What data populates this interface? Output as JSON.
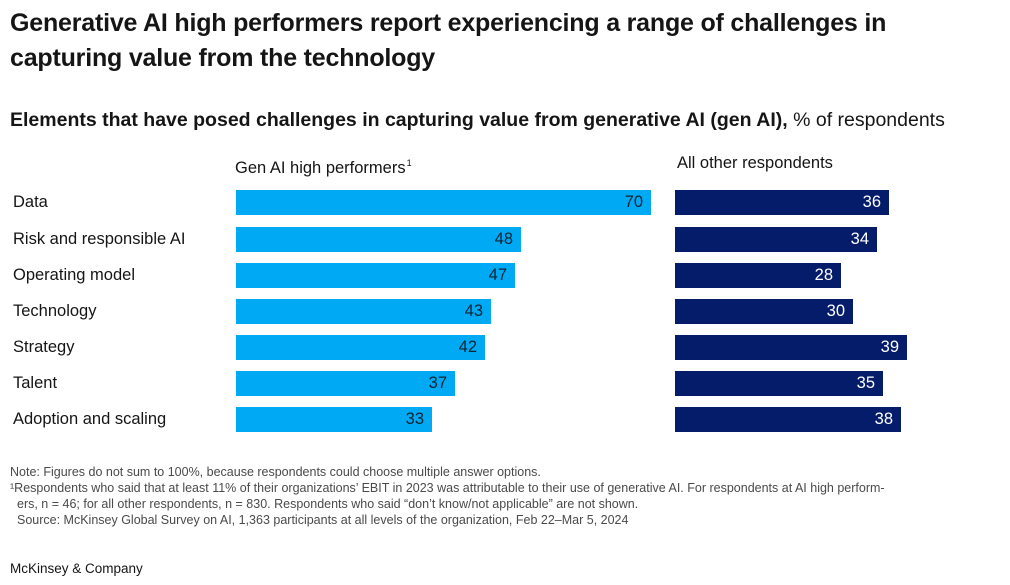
{
  "title": "Generative AI high performers report experiencing a range of challenges in capturing value from the technology",
  "subtitle_bold": "Elements that have posed challenges in capturing value from generative AI (gen AI),",
  "subtitle_rest": " % of respondents",
  "col_left_label": "Gen AI high performers",
  "col_left_footnote": "1",
  "col_right_label": "All other respondents",
  "colors": {
    "left_bar": "#00a9f4",
    "right_bar": "#051c6b"
  },
  "chart_data": {
    "type": "bar",
    "orientation": "horizontal",
    "categories": [
      "Data",
      "Risk and responsible AI",
      "Operating model",
      "Technology",
      "Strategy",
      "Talent",
      "Adoption and scaling"
    ],
    "series": [
      {
        "name": "Gen AI high performers",
        "values": [
          70,
          48,
          47,
          43,
          42,
          37,
          33
        ]
      },
      {
        "name": "All other respondents",
        "values": [
          36,
          34,
          28,
          30,
          39,
          35,
          38
        ]
      }
    ],
    "grid": false
  },
  "notes": {
    "note": "Note: Figures do not sum to 100%, because respondents could choose multiple answer options.",
    "footnote_line1": "¹Respondents who said that at least 11% of their organizations’ EBIT in 2023 was attributable to their use of generative AI. For respondents at AI high perform-",
    "footnote_line2": "ers, n = 46; for all other respondents, n = 830. Respondents who said “don’t know/not applicable” are not shown.",
    "source": "Source: McKinsey Global Survey on AI, 1,363 participants at all levels of the organization, Feb 22–Mar 5, 2024"
  },
  "brand": "McKinsey & Company"
}
